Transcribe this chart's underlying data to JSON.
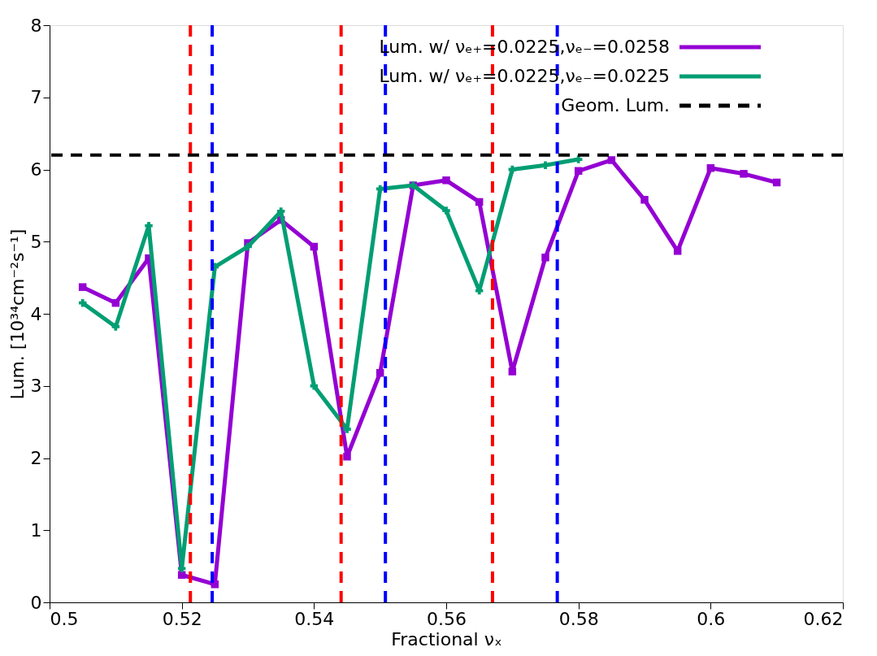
{
  "chart_data": {
    "type": "line",
    "xlabel": "Fractional νₓ",
    "ylabel": "Lum. [10³⁴cm⁻²s⁻¹]",
    "xlim": [
      0.5,
      0.62
    ],
    "xticks": [
      0.5,
      0.52,
      0.54,
      0.56,
      0.58,
      0.6,
      0.62
    ],
    "ylim": [
      0,
      8
    ],
    "yticks": [
      0,
      1,
      2,
      3,
      4,
      5,
      6,
      7,
      8
    ],
    "grid": false,
    "legend": "top right",
    "line_style": "solid",
    "series": [
      {
        "name": "Lum. w/ νₑ₊=0.0225,νₑ₋=0.0258",
        "color": "#9400d3",
        "marker": "square",
        "x": [
          0.505,
          0.51,
          0.515,
          0.52,
          0.525,
          0.53,
          0.535,
          0.54,
          0.545,
          0.55,
          0.555,
          0.56,
          0.565,
          0.57,
          0.575,
          0.58,
          0.585,
          0.59,
          0.595,
          0.6,
          0.605,
          0.61
        ],
        "values": [
          4.37,
          4.15,
          4.77,
          0.38,
          0.25,
          4.98,
          5.3,
          4.93,
          2.02,
          3.18,
          5.78,
          5.85,
          5.55,
          3.2,
          4.78,
          5.98,
          6.13,
          5.58,
          4.87,
          6.02,
          5.94,
          5.82
        ]
      },
      {
        "name": "Lum. w/ νₑ₊=0.0225,νₑ₋=0.0225",
        "color": "#009e73",
        "marker": "cross",
        "x": [
          0.505,
          0.51,
          0.515,
          0.52,
          0.525,
          0.53,
          0.535,
          0.54,
          0.545,
          0.55,
          0.555,
          0.56,
          0.565,
          0.57,
          0.575,
          0.58
        ],
        "values": [
          4.15,
          3.82,
          5.22,
          0.47,
          4.65,
          4.93,
          5.42,
          3.0,
          2.4,
          5.73,
          5.78,
          5.43,
          4.32,
          6.0,
          6.06,
          6.14
        ]
      }
    ],
    "ref_lines": [
      {
        "axis": "y",
        "value": 6.2,
        "label": "Geom. Lum.",
        "color": "#000000",
        "line_style": "dashed"
      },
      {
        "axis": "x",
        "value": 0.5213,
        "color": "#ff0000",
        "line_style": "dashed"
      },
      {
        "axis": "x",
        "value": 0.5246,
        "color": "#0000ff",
        "line_style": "dashed"
      },
      {
        "axis": "x",
        "value": 0.5441,
        "color": "#ff0000",
        "line_style": "dashed"
      },
      {
        "axis": "x",
        "value": 0.5508,
        "color": "#0000ff",
        "line_style": "dashed"
      },
      {
        "axis": "x",
        "value": 0.567,
        "color": "#ff0000",
        "line_style": "dashed"
      },
      {
        "axis": "x",
        "value": 0.5768,
        "color": "#0000ff",
        "line_style": "dashed"
      }
    ]
  }
}
